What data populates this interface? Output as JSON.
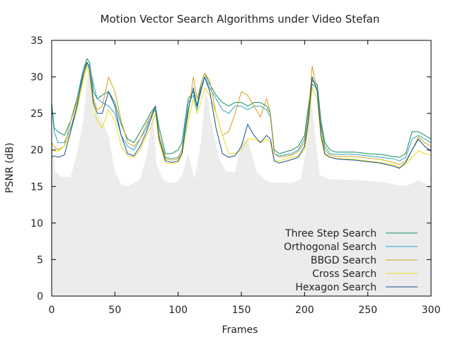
{
  "chart_data": {
    "type": "line",
    "title": "Motion Vector Search Algorithms under Video Stefan",
    "xlabel": "Frames",
    "ylabel": "PSNR (dB)",
    "xlim": [
      0,
      300
    ],
    "ylim": [
      0,
      35
    ],
    "xticks": [
      0,
      50,
      100,
      150,
      200,
      250,
      300
    ],
    "yticks": [
      0,
      5,
      10,
      15,
      20,
      25,
      30,
      35
    ],
    "grid": false,
    "legend_position": "bottom-right",
    "background_area": {
      "x": [
        0,
        3,
        8,
        15,
        20,
        25,
        28,
        30,
        33,
        38,
        45,
        50,
        55,
        60,
        65,
        70,
        75,
        80,
        83,
        88,
        92,
        98,
        103,
        108,
        113,
        118,
        122,
        126,
        132,
        138,
        145,
        150,
        155,
        162,
        168,
        175,
        182,
        190,
        197,
        201,
        204,
        207,
        212,
        220,
        235,
        250,
        265,
        275,
        282,
        290,
        295,
        300
      ],
      "y": [
        21.5,
        17,
        16.3,
        16.3,
        19.5,
        24,
        29.5,
        31.5,
        25,
        24.7,
        22,
        17,
        15.3,
        15,
        15.5,
        16,
        19,
        25,
        18,
        16,
        15.5,
        15.5,
        16.5,
        19.5,
        16,
        21,
        28.5,
        24,
        19,
        17,
        17,
        21,
        21.5,
        17,
        16,
        15.5,
        15.5,
        15.5,
        16,
        20,
        28.5,
        24,
        16.5,
        16,
        15.9,
        15.8,
        15.5,
        15.1,
        15.2,
        15.8,
        15.5,
        14.8
      ]
    },
    "series": [
      {
        "name": "Three Step Search",
        "color": "#118d5a",
        "x": [
          0,
          2,
          5,
          10,
          15,
          20,
          25,
          28,
          30,
          33,
          36,
          40,
          45,
          50,
          55,
          60,
          65,
          70,
          75,
          78,
          82,
          85,
          90,
          95,
          100,
          103,
          108,
          112,
          115,
          118,
          121,
          125,
          130,
          135,
          140,
          145,
          150,
          155,
          160,
          165,
          170,
          173,
          176,
          180,
          190,
          195,
          200,
          203,
          206,
          210,
          213,
          216,
          220,
          225,
          230,
          240,
          250,
          260,
          270,
          275,
          280,
          285,
          290,
          295,
          300
        ],
        "y": [
          26.5,
          23,
          22.5,
          22,
          24,
          27,
          31,
          32.5,
          32,
          28,
          27,
          27.5,
          28,
          26.5,
          23.5,
          21.5,
          21,
          22.5,
          24,
          25,
          26,
          23,
          19.5,
          19.5,
          20,
          21,
          27,
          28,
          26,
          29,
          30.5,
          29,
          27.5,
          26.5,
          26,
          26.5,
          26.5,
          26,
          26.5,
          26.5,
          26,
          25,
          20,
          19.5,
          20,
          20.5,
          22,
          26,
          29.5,
          29,
          24,
          21,
          20,
          19.7,
          19.7,
          19.7,
          19.5,
          19.4,
          19.1,
          19,
          19.5,
          22.5,
          22.5,
          22,
          21.5
        ]
      },
      {
        "name": "Orthogonal Search",
        "color": "#2aa3c7",
        "x": [
          0,
          2,
          5,
          10,
          15,
          20,
          25,
          28,
          30,
          33,
          36,
          40,
          45,
          50,
          55,
          60,
          65,
          70,
          75,
          78,
          82,
          85,
          90,
          95,
          100,
          103,
          108,
          112,
          115,
          118,
          121,
          125,
          130,
          135,
          140,
          145,
          150,
          155,
          160,
          165,
          170,
          173,
          176,
          180,
          190,
          195,
          200,
          203,
          206,
          210,
          213,
          216,
          220,
          225,
          230,
          240,
          250,
          260,
          270,
          275,
          280,
          285,
          290,
          295,
          300
        ],
        "y": [
          26,
          22.5,
          21,
          21,
          23,
          26,
          31,
          32,
          31.5,
          29,
          27,
          26.5,
          26,
          25,
          22,
          20.5,
          20,
          21.5,
          23,
          24.5,
          25.5,
          22,
          19,
          18.8,
          19,
          20,
          26.5,
          27.5,
          25.5,
          28.5,
          30,
          28.5,
          27,
          25.5,
          25,
          26,
          26,
          25.5,
          26,
          26,
          25.5,
          24.5,
          19.5,
          19.2,
          19.5,
          20,
          21.5,
          25.5,
          29,
          28.5,
          23.5,
          20.5,
          19.5,
          19.4,
          19.4,
          19.4,
          19.2,
          19,
          18.8,
          18.5,
          19,
          21.5,
          22,
          21.5,
          21
        ]
      },
      {
        "name": "BBGD Search",
        "color": "#d4a017",
        "x": [
          0,
          2,
          5,
          10,
          15,
          20,
          25,
          28,
          30,
          33,
          36,
          40,
          45,
          50,
          55,
          60,
          65,
          70,
          75,
          78,
          82,
          85,
          90,
          95,
          100,
          103,
          108,
          112,
          115,
          118,
          121,
          125,
          130,
          135,
          140,
          145,
          150,
          155,
          160,
          165,
          170,
          173,
          176,
          180,
          190,
          195,
          200,
          203,
          206,
          210,
          213,
          216,
          220,
          225,
          230,
          240,
          250,
          260,
          270,
          275,
          280,
          285,
          290,
          295,
          300
        ],
        "y": [
          21,
          20.5,
          20,
          20.5,
          24,
          26.5,
          30,
          32,
          31,
          27,
          25.5,
          26,
          30,
          28,
          24,
          21,
          20.5,
          21.5,
          23.5,
          24.5,
          26,
          22,
          18.8,
          18.6,
          18.8,
          20,
          25,
          30,
          27,
          29,
          30.5,
          29.5,
          25,
          22,
          22.5,
          25,
          28,
          27.5,
          26,
          24.5,
          27,
          25,
          19.5,
          19,
          19.3,
          19.8,
          21,
          25,
          31.5,
          28,
          23,
          20,
          19.3,
          19.1,
          19.1,
          19.1,
          18.9,
          18.7,
          18.3,
          18,
          18.5,
          20,
          21.8,
          21,
          20.5
        ]
      },
      {
        "name": "Cross Search",
        "color": "#e8dc14",
        "x": [
          0,
          2,
          5,
          10,
          15,
          20,
          25,
          28,
          30,
          33,
          36,
          40,
          45,
          50,
          55,
          60,
          65,
          70,
          75,
          78,
          82,
          85,
          90,
          95,
          100,
          103,
          108,
          112,
          115,
          118,
          121,
          125,
          130,
          135,
          140,
          145,
          150,
          155,
          160,
          165,
          170,
          173,
          176,
          180,
          190,
          195,
          200,
          203,
          206,
          210,
          213,
          216,
          220,
          225,
          230,
          240,
          250,
          260,
          270,
          275,
          280,
          285,
          290,
          295,
          300
        ],
        "y": [
          20,
          19.8,
          19.8,
          20.5,
          22.5,
          25.5,
          29.5,
          31.5,
          30,
          26,
          24,
          23,
          25.5,
          24,
          20.5,
          19.2,
          19,
          20,
          22,
          23,
          25,
          21,
          18.2,
          18.1,
          18.3,
          19.3,
          24,
          27,
          25,
          26.5,
          28.5,
          27.5,
          25,
          22,
          19.5,
          19.5,
          20,
          21.5,
          21.5,
          21,
          21.5,
          21,
          18.5,
          18.5,
          19,
          19.2,
          20,
          23.5,
          28.5,
          27,
          21.5,
          19.3,
          19,
          18.8,
          18.8,
          18.7,
          18.5,
          18.3,
          18,
          17.6,
          18,
          19,
          19.9,
          19.5,
          19.3
        ]
      },
      {
        "name": "Hexagon Search",
        "color": "#14508f",
        "x": [
          0,
          2,
          5,
          10,
          15,
          20,
          25,
          28,
          30,
          33,
          36,
          40,
          45,
          50,
          55,
          60,
          65,
          70,
          75,
          78,
          82,
          85,
          90,
          95,
          100,
          103,
          108,
          112,
          115,
          118,
          121,
          125,
          130,
          135,
          140,
          145,
          150,
          155,
          160,
          165,
          170,
          173,
          176,
          180,
          190,
          195,
          200,
          203,
          206,
          210,
          213,
          216,
          220,
          225,
          230,
          240,
          250,
          260,
          270,
          275,
          280,
          285,
          290,
          295,
          300
        ],
        "y": [
          19,
          19.2,
          19,
          19.3,
          22.5,
          26,
          30.5,
          32,
          31,
          26.5,
          25,
          25,
          28,
          26,
          22,
          19.5,
          19.2,
          20.5,
          22.5,
          24,
          26,
          21.5,
          18.5,
          18.3,
          18.5,
          19.5,
          25.5,
          28.5,
          26,
          28,
          30,
          28,
          23,
          19.5,
          19,
          19.2,
          20.5,
          23.5,
          22,
          21,
          22,
          21.5,
          18.5,
          18.2,
          18.7,
          19,
          20.5,
          24,
          30,
          28,
          22,
          19.5,
          19,
          18.8,
          18.7,
          18.6,
          18.4,
          18.2,
          17.8,
          17.5,
          18.3,
          20,
          21.5,
          20.5,
          19.8
        ]
      }
    ]
  }
}
